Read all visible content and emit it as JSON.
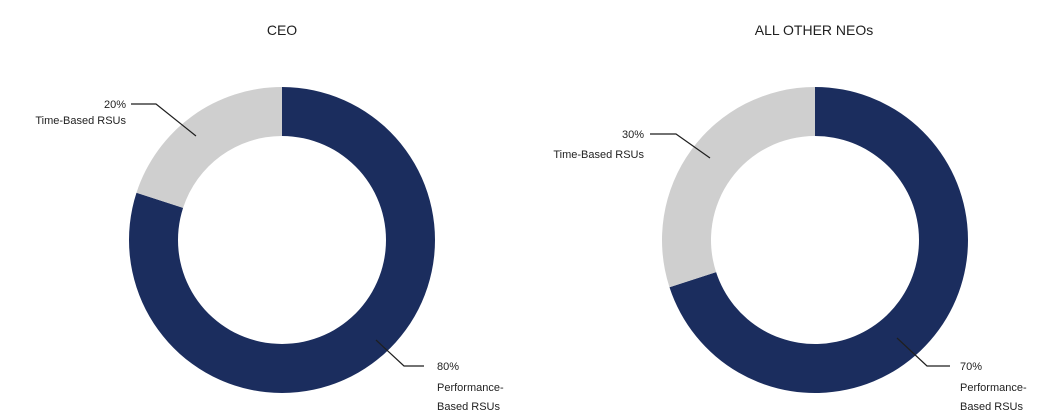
{
  "chart_data": [
    {
      "type": "pie",
      "title": "CEO",
      "slices": [
        {
          "name": "Performance-Based RSUs",
          "value": 80,
          "pct_label": "80%",
          "label_lines": [
            "Performance-",
            "Based RSUs"
          ],
          "color": "#1b2d5e"
        },
        {
          "name": "Time-Based RSUs",
          "value": 20,
          "pct_label": "20%",
          "label_lines": [
            "Time-Based RSUs"
          ],
          "color": "#cfcfcf"
        }
      ]
    },
    {
      "type": "pie",
      "title": "ALL OTHER NEOs",
      "slices": [
        {
          "name": "Performance-Based RSUs",
          "value": 70,
          "pct_label": "70%",
          "label_lines": [
            "Performance-",
            "Based RSUs"
          ],
          "color": "#1b2d5e"
        },
        {
          "name": "Time-Based RSUs",
          "value": 30,
          "pct_label": "30%",
          "label_lines": [
            "Time-Based RSUs"
          ],
          "color": "#cfcfcf"
        }
      ]
    }
  ]
}
